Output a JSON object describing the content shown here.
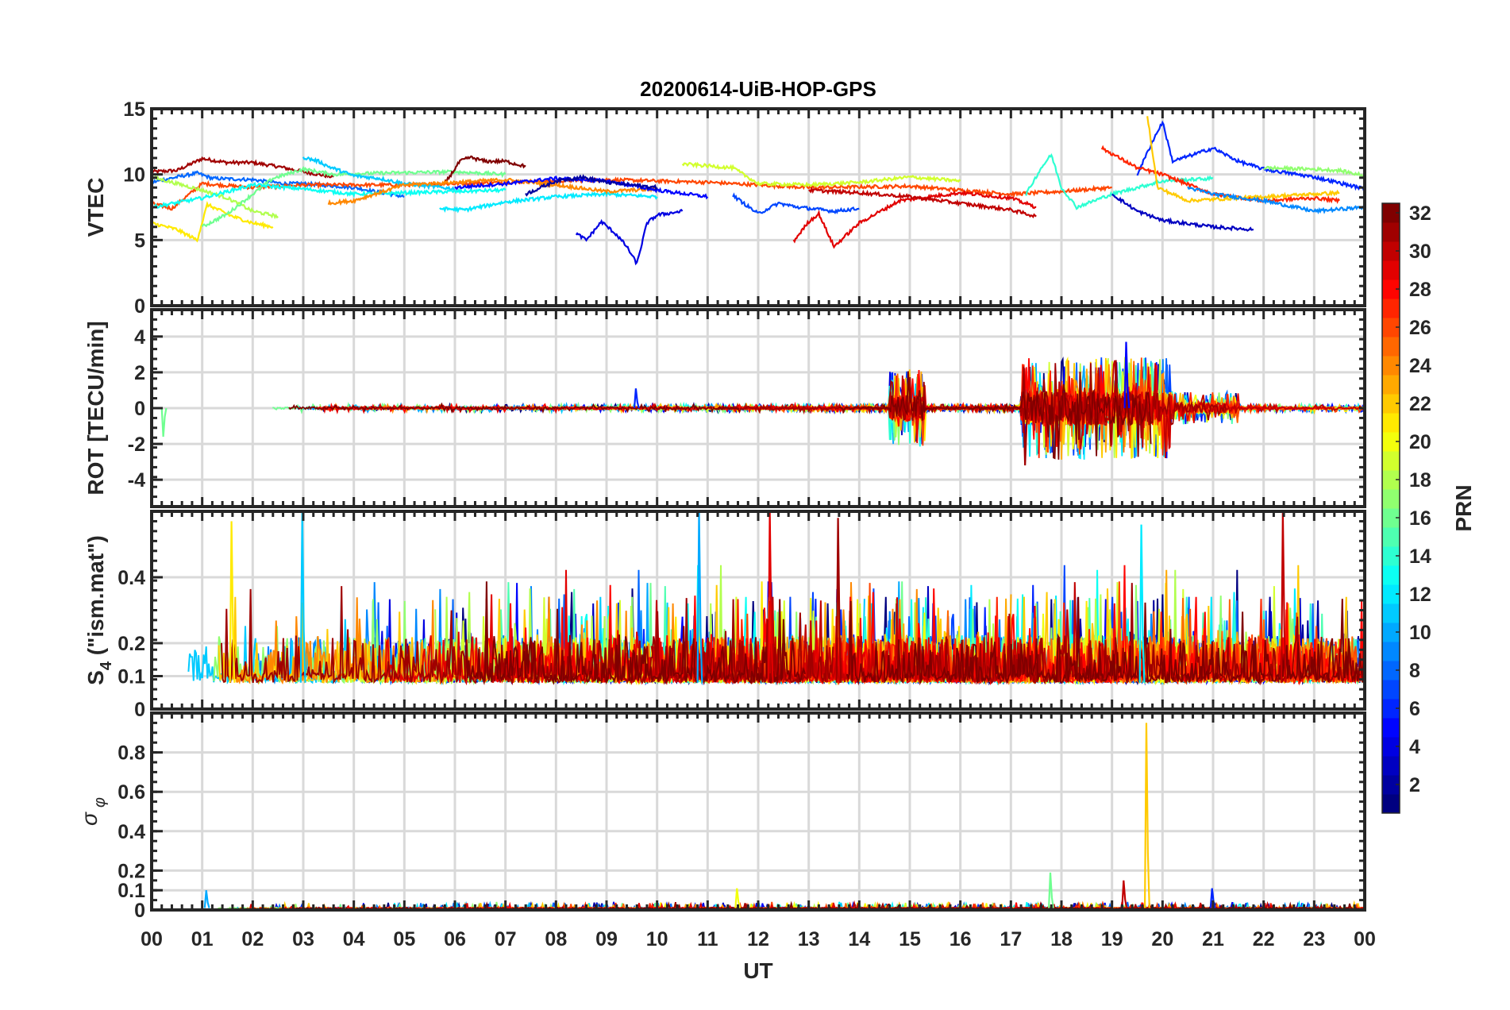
{
  "chart_data": {
    "type": "line",
    "title": "20200614-UiB-HOP-GPS",
    "xlabel": "UT",
    "xlim": [
      0,
      24
    ],
    "xtick_labels": [
      "00",
      "01",
      "02",
      "03",
      "04",
      "05",
      "06",
      "07",
      "08",
      "09",
      "10",
      "11",
      "12",
      "13",
      "14",
      "15",
      "16",
      "17",
      "18",
      "19",
      "20",
      "21",
      "22",
      "23",
      "00"
    ],
    "grid": true,
    "colorbar": {
      "label": "PRN",
      "range": [
        1,
        32
      ],
      "ticks": [
        2,
        4,
        6,
        8,
        10,
        12,
        14,
        16,
        18,
        20,
        22,
        24,
        26,
        28,
        30,
        32
      ],
      "colormap": "jet"
    },
    "panels": [
      {
        "name": "vtec",
        "ylabel": "VTEC",
        "ylim": [
          0,
          15
        ],
        "yticks": [
          0,
          5,
          10,
          15
        ],
        "ytick_labels": [
          "0",
          "5",
          "10",
          "15"
        ],
        "series": [
          {
            "prn": 31,
            "points": [
              [
                0,
                10.2
              ],
              [
                0.5,
                10.3
              ],
              [
                1,
                11.2
              ],
              [
                1.5,
                10.9
              ],
              [
                2,
                10.9
              ],
              [
                2.5,
                10.6
              ],
              [
                3,
                10.2
              ],
              [
                3.6,
                9.8
              ]
            ]
          },
          {
            "prn": 8,
            "points": [
              [
                0,
                9.4
              ],
              [
                0.5,
                9.8
              ],
              [
                0.9,
                10.1
              ],
              [
                1.2,
                9.7
              ],
              [
                2,
                9.6
              ],
              [
                2.6,
                9.3
              ],
              [
                3,
                9.3
              ],
              [
                4,
                9.0
              ],
              [
                5,
                8.3
              ]
            ]
          },
          {
            "prn": 26,
            "points": [
              [
                0,
                7.8
              ],
              [
                0.4,
                7.4
              ],
              [
                1,
                9.3
              ],
              [
                2,
                9.0
              ],
              [
                3,
                9.2
              ],
              [
                5,
                9.2
              ],
              [
                7,
                9.4
              ],
              [
                9,
                9.6
              ],
              [
                11,
                9.4
              ],
              [
                13,
                9.0
              ],
              [
                15,
                9.1
              ],
              [
                17,
                8.5
              ],
              [
                18,
                8.7
              ],
              [
                19,
                9.0
              ]
            ]
          },
          {
            "prn": 21,
            "points": [
              [
                0,
                6.3
              ],
              [
                0.5,
                5.8
              ],
              [
                0.9,
                5.0
              ],
              [
                1.1,
                7.7
              ],
              [
                1.6,
                6.8
              ],
              [
                2,
                6.3
              ],
              [
                2.4,
                6.0
              ]
            ]
          },
          {
            "prn": 18,
            "points": [
              [
                0,
                9.8
              ],
              [
                0.6,
                9.2
              ],
              [
                1,
                8.8
              ],
              [
                1.5,
                8.2
              ],
              [
                2,
                7.2
              ],
              [
                2.5,
                6.8
              ]
            ]
          },
          {
            "prn": 16,
            "points": [
              [
                1,
                6.0
              ],
              [
                1.5,
                7.0
              ],
              [
                2,
                8.5
              ],
              [
                2.4,
                9.7
              ],
              [
                3,
                10.4
              ],
              [
                3.6,
                10.0
              ],
              [
                4.5,
                10.1
              ],
              [
                6,
                10.2
              ],
              [
                7,
                10.0
              ]
            ]
          },
          {
            "prn": 11,
            "points": [
              [
                3,
                11.3
              ],
              [
                3.3,
                11.0
              ],
              [
                3.5,
                10.6
              ],
              [
                4,
                9.9
              ],
              [
                4.5,
                9.7
              ],
              [
                5,
                9.3
              ],
              [
                6,
                8.9
              ]
            ]
          },
          {
            "prn": 13,
            "points": [
              [
                0,
                7.5
              ],
              [
                1,
                8.2
              ],
              [
                2,
                9.2
              ],
              [
                3,
                8.9
              ],
              [
                4,
                8.5
              ],
              [
                5,
                8.6
              ],
              [
                6,
                8.7
              ],
              [
                7,
                8.8
              ]
            ]
          },
          {
            "prn": 32,
            "points": [
              [
                5.8,
                9.3
              ],
              [
                6.1,
                11.0
              ],
              [
                6.3,
                11.3
              ],
              [
                6.6,
                11.0
              ],
              [
                7,
                11.0
              ],
              [
                7.4,
                10.6
              ]
            ]
          },
          {
            "prn": 4,
            "points": [
              [
                8.4,
                5.5
              ],
              [
                8.6,
                5.0
              ],
              [
                8.9,
                6.4
              ],
              [
                9.2,
                5.4
              ],
              [
                9.4,
                4.5
              ],
              [
                9.6,
                3.2
              ],
              [
                9.8,
                6.3
              ],
              [
                10,
                6.9
              ],
              [
                10.5,
                7.2
              ]
            ]
          },
          {
            "prn": 12,
            "points": [
              [
                5.7,
                7.4
              ],
              [
                6.2,
                7.3
              ],
              [
                7,
                7.9
              ],
              [
                8,
                8.3
              ],
              [
                9,
                8.5
              ],
              [
                10,
                8.3
              ]
            ]
          },
          {
            "prn": 24,
            "points": [
              [
                3.5,
                7.8
              ],
              [
                4,
                8.0
              ],
              [
                5,
                9.2
              ],
              [
                6,
                9.4
              ],
              [
                7,
                9.6
              ],
              [
                8,
                9.2
              ],
              [
                9,
                8.7
              ],
              [
                10,
                8.9
              ]
            ]
          },
          {
            "prn": 5,
            "points": [
              [
                6,
                9.0
              ],
              [
                7,
                9.3
              ],
              [
                8,
                9.7
              ],
              [
                9,
                9.5
              ],
              [
                10,
                8.8
              ],
              [
                11,
                8.3
              ]
            ]
          },
          {
            "prn": 19,
            "points": [
              [
                10.5,
                10.8
              ],
              [
                11.5,
                10.5
              ],
              [
                12,
                9.3
              ],
              [
                13,
                9.2
              ],
              [
                14,
                9.4
              ],
              [
                15,
                9.8
              ],
              [
                16,
                9.5
              ]
            ]
          },
          {
            "prn": 29,
            "points": [
              [
                12.7,
                4.9
              ],
              [
                13.0,
                6.4
              ],
              [
                13.2,
                7.0
              ],
              [
                13.5,
                4.5
              ],
              [
                14,
                6.3
              ],
              [
                14.8,
                8.0
              ],
              [
                16,
                8.6
              ],
              [
                17,
                8.2
              ],
              [
                17.5,
                7.5
              ]
            ]
          },
          {
            "prn": 7,
            "points": [
              [
                11.5,
                8.4
              ],
              [
                12,
                7.0
              ],
              [
                12.4,
                7.8
              ],
              [
                12.8,
                7.5
              ],
              [
                13.5,
                7.2
              ],
              [
                14,
                7.4
              ]
            ]
          },
          {
            "prn": 30,
            "points": [
              [
                13,
                8.8
              ],
              [
                14,
                8.6
              ],
              [
                15,
                8.3
              ],
              [
                16,
                7.8
              ],
              [
                17,
                7.3
              ],
              [
                17.5,
                6.8
              ]
            ]
          },
          {
            "prn": 14,
            "points": [
              [
                17.3,
                8.5
              ],
              [
                17.6,
                10.5
              ],
              [
                17.8,
                11.5
              ],
              [
                18.0,
                9.0
              ],
              [
                18.3,
                7.5
              ],
              [
                19,
                8.5
              ],
              [
                20,
                9.5
              ],
              [
                21,
                9.7
              ]
            ]
          },
          {
            "prn": 6,
            "points": [
              [
                19.5,
                10
              ],
              [
                19.8,
                12.5
              ],
              [
                20,
                14
              ],
              [
                20.2,
                11
              ],
              [
                21,
                12
              ],
              [
                21.5,
                11
              ],
              [
                22,
                10.4
              ],
              [
                23,
                9.8
              ],
              [
                24,
                8.9
              ]
            ]
          },
          {
            "prn": 3,
            "points": [
              [
                19,
                8.5
              ],
              [
                19.5,
                7.2
              ],
              [
                20,
                6.5
              ],
              [
                21,
                6.0
              ],
              [
                21.8,
                5.8
              ]
            ]
          },
          {
            "prn": 27,
            "points": [
              [
                18.8,
                12.0
              ],
              [
                19.5,
                10.5
              ],
              [
                20,
                10.0
              ],
              [
                21,
                8.5
              ],
              [
                22,
                8.0
              ],
              [
                23,
                8.2
              ],
              [
                23.5,
                8.0
              ]
            ]
          },
          {
            "prn": 22,
            "points": [
              [
                19.7,
                14.5
              ],
              [
                19.9,
                9.0
              ],
              [
                20.5,
                8.0
              ],
              [
                22,
                8.3
              ],
              [
                23.5,
                8.6
              ]
            ]
          },
          {
            "prn": 9,
            "points": [
              [
                20.5,
                9.0
              ],
              [
                21,
                8.5
              ],
              [
                22,
                8.0
              ],
              [
                23,
                7.2
              ],
              [
                24,
                7.5
              ]
            ]
          },
          {
            "prn": 17,
            "points": [
              [
                22,
                10.5
              ],
              [
                23,
                10.4
              ],
              [
                23.5,
                10.3
              ],
              [
                24,
                9.9
              ]
            ]
          },
          {
            "prn": 2,
            "points": [
              [
                7.4,
                8.5
              ],
              [
                8,
                9.5
              ],
              [
                8.5,
                9.8
              ],
              [
                9,
                9.4
              ],
              [
                10,
                9.0
              ]
            ]
          }
        ]
      },
      {
        "name": "rot",
        "ylabel": "ROT [TECU/min]",
        "ylim": [
          -5.5,
          5.5
        ],
        "yticks": [
          -4,
          -2,
          0,
          2,
          4
        ],
        "ytick_labels": [
          "-4",
          "-2",
          "0",
          "2",
          "4"
        ],
        "noise": {
          "base": 0.0,
          "amp": 0.12
        },
        "bursts": [
          {
            "t0": 14.6,
            "t1": 15.3,
            "amp": 1.2
          },
          {
            "t0": 17.2,
            "t1": 20.2,
            "amp": 1.6
          },
          {
            "t0": 20.2,
            "t1": 21.5,
            "amp": 0.5
          }
        ],
        "peaks": [
          {
            "prn": 5,
            "x": 19.3,
            "y": 3.7
          },
          {
            "prn": 31,
            "x": 17.3,
            "y": -3.2
          },
          {
            "prn": 16,
            "x": 0.25,
            "y": -1.6
          },
          {
            "prn": 6,
            "x": 9.6,
            "y": 1.1
          }
        ]
      },
      {
        "name": "s4",
        "ylabel": "S4 (\"ism.mat\")",
        "ylabel_main": "S",
        "ylabel_sub": "4",
        "ylabel_rest": " (\"ism.mat\")",
        "ylim": [
          0,
          0.6
        ],
        "yticks": [
          0,
          0.1,
          0.2,
          0.4
        ],
        "ytick_labels": [
          "0",
          "0.1",
          "0.2",
          "0.4"
        ],
        "noise": {
          "base": 0.08,
          "amp": 0.12
        },
        "peaks": [
          {
            "prn": 11,
            "x": 3.0,
            "y": 0.6
          },
          {
            "prn": 10,
            "x": 10.85,
            "y": 0.6
          },
          {
            "prn": 29,
            "x": 12.25,
            "y": 0.6
          },
          {
            "prn": 31,
            "x": 13.6,
            "y": 0.58
          },
          {
            "prn": 30,
            "x": 22.4,
            "y": 0.6
          },
          {
            "prn": 12,
            "x": 19.6,
            "y": 0.56
          },
          {
            "prn": 21,
            "x": 1.6,
            "y": 0.57
          }
        ]
      },
      {
        "name": "sigma-phi",
        "ylabel": "σ φ",
        "ylabel_main": "σ",
        "ylabel_sub": "φ",
        "ylim": [
          0,
          1
        ],
        "yticks": [
          0,
          0.1,
          0.2,
          0.4,
          0.6,
          0.8
        ],
        "ytick_labels": [
          "0",
          "0.1",
          "0.2",
          "0.4",
          "0.6",
          "0.8"
        ],
        "noise": {
          "base": 0.012,
          "amp": 0.012
        },
        "peaks": [
          {
            "prn": 22,
            "x": 19.7,
            "y": 0.95
          },
          {
            "prn": 10,
            "x": 1.1,
            "y": 0.1
          },
          {
            "prn": 16,
            "x": 17.8,
            "y": 0.19
          },
          {
            "prn": 30,
            "x": 19.25,
            "y": 0.15
          },
          {
            "prn": 6,
            "x": 21.0,
            "y": 0.11
          },
          {
            "prn": 20,
            "x": 11.6,
            "y": 0.11
          }
        ]
      }
    ]
  }
}
